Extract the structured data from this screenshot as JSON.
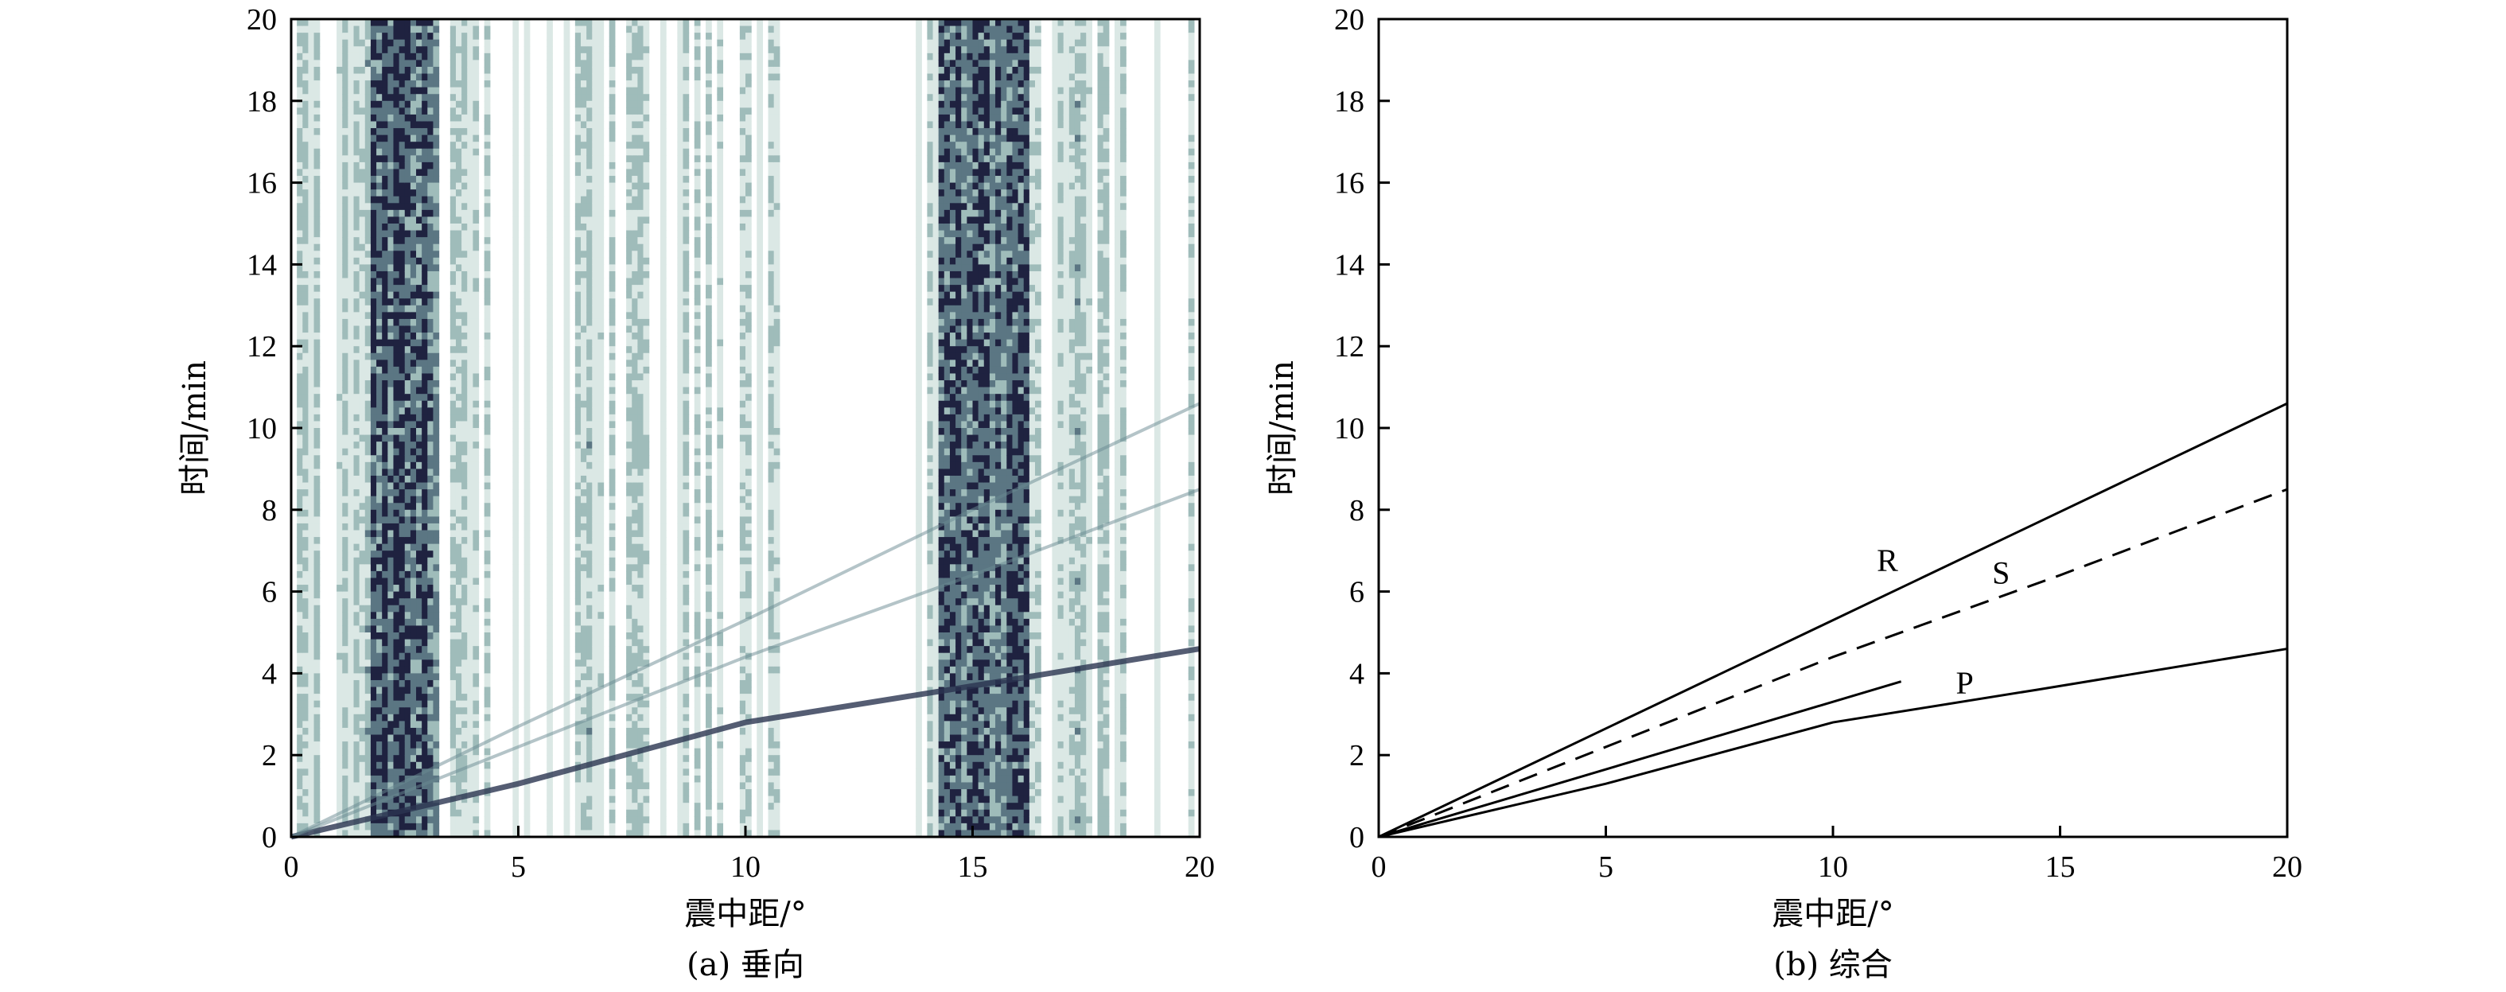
{
  "figure_captions": [
    "(a) 垂向",
    "(b) 综合"
  ],
  "chart_data": [
    {
      "type": "heatmap",
      "caption": "(a) 垂向",
      "xlabel": "震中距/°",
      "ylabel": "时间/min",
      "xlim": [
        0,
        20
      ],
      "ylim": [
        0,
        20
      ],
      "xticks": [
        "0",
        "5",
        "10",
        "15",
        "20"
      ],
      "yticks": [
        "0",
        "2",
        "4",
        "6",
        "8",
        "10",
        "12",
        "14",
        "16",
        "18",
        "20"
      ],
      "colormap": [
        "#ffffff",
        "#dbe8e5",
        "#9fbcba",
        "#5b7683",
        "#1f2240"
      ],
      "high_intensity_bands_deg": [
        [
          1.8,
          3.3
        ],
        [
          14.3,
          16.3
        ]
      ],
      "arrival_traces": [
        {
          "phase": "P",
          "x": [
            0,
            5,
            10,
            14.5,
            20
          ],
          "y": [
            0,
            1.3,
            2.8,
            3.6,
            4.6
          ]
        },
        {
          "phase": "S",
          "x": [
            0,
            5,
            10,
            15,
            20
          ],
          "y": [
            0,
            2.2,
            4.4,
            6.4,
            8.5
          ]
        },
        {
          "phase": "R",
          "x": [
            0,
            5,
            10,
            15,
            20
          ],
          "y": [
            0,
            2.7,
            5.3,
            8.0,
            10.6
          ]
        }
      ]
    },
    {
      "type": "line",
      "caption": "(b) 综合",
      "xlabel": "震中距/°",
      "ylabel": "时间/min",
      "xlim": [
        0,
        20
      ],
      "ylim": [
        0,
        20
      ],
      "xticks": [
        "0",
        "5",
        "10",
        "15",
        "20"
      ],
      "yticks": [
        "0",
        "2",
        "4",
        "6",
        "8",
        "10",
        "12",
        "14",
        "16",
        "18",
        "20"
      ],
      "series": [
        {
          "name": "R",
          "style": "solid",
          "x": [
            0,
            20
          ],
          "y": [
            0,
            10.6
          ]
        },
        {
          "name": "S",
          "style": "dashed",
          "x": [
            0,
            5,
            10,
            15,
            20
          ],
          "y": [
            0,
            2.2,
            4.4,
            6.4,
            8.5
          ]
        },
        {
          "name": "",
          "style": "solid",
          "x": [
            0,
            11.5
          ],
          "y": [
            0,
            3.8
          ]
        },
        {
          "name": "P",
          "style": "solid",
          "x": [
            0,
            5,
            10,
            14.5,
            20
          ],
          "y": [
            0,
            1.3,
            2.8,
            3.6,
            4.6
          ]
        }
      ],
      "annotations": [
        {
          "text": "R",
          "x": 11.2,
          "y": 6.5
        },
        {
          "text": "S",
          "x": 13.7,
          "y": 6.2
        },
        {
          "text": "P",
          "x": 12.9,
          "y": 3.5
        }
      ]
    }
  ]
}
